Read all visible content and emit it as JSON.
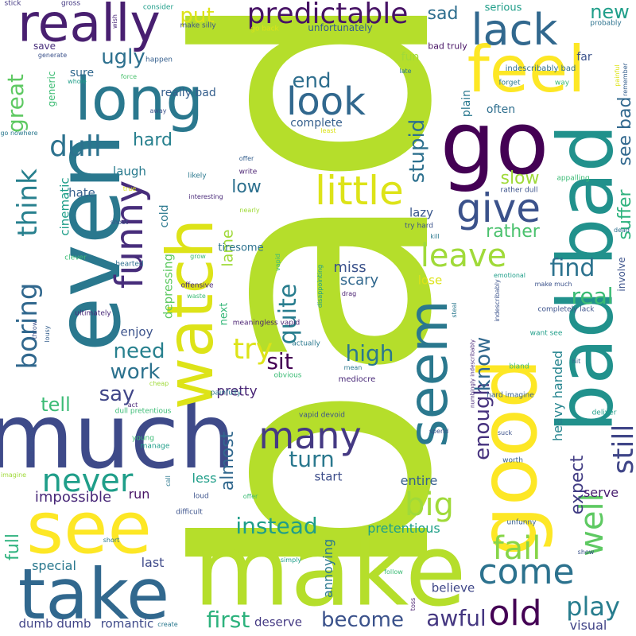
{
  "words": [
    {
      "text": "bad",
      "color": "#b5de2b",
      "vertical": true
    },
    {
      "text": "make",
      "color": "#b5de2b",
      "vertical": false
    },
    {
      "text": "even",
      "color": "#2a788e",
      "vertical": true
    },
    {
      "text": "much",
      "color": "#3e4a89",
      "vertical": false
    },
    {
      "text": "go",
      "color": "#440154",
      "vertical": false
    },
    {
      "text": "good",
      "color": "#fde725",
      "vertical": true
    },
    {
      "text": "bad bad",
      "color": "#21918c",
      "vertical": true
    },
    {
      "text": "see",
      "color": "#fde725",
      "vertical": false
    },
    {
      "text": "take",
      "color": "#31688e",
      "vertical": false
    },
    {
      "text": "watch",
      "color": "#dde318",
      "vertical": true
    },
    {
      "text": "long",
      "color": "#2a788e",
      "vertical": false
    },
    {
      "text": "feel",
      "color": "#fde725",
      "vertical": false
    },
    {
      "text": "really",
      "color": "#481f70",
      "vertical": false
    },
    {
      "text": "seem",
      "color": "#2a788e",
      "vertical": true
    },
    {
      "text": "little",
      "color": "#dde318",
      "vertical": false
    },
    {
      "text": "lack",
      "color": "#31688e",
      "vertical": false
    },
    {
      "text": "predictable",
      "color": "#471365",
      "vertical": false
    },
    {
      "text": "look",
      "color": "#31688e",
      "vertical": false
    },
    {
      "text": "many",
      "color": "#443983",
      "vertical": false
    },
    {
      "text": "funny",
      "color": "#472d7b",
      "vertical": true
    },
    {
      "text": "give",
      "color": "#3b528b",
      "vertical": false
    },
    {
      "text": "come",
      "color": "#2c728e",
      "vertical": false
    },
    {
      "text": "old",
      "color": "#440154",
      "vertical": false
    },
    {
      "text": "big",
      "color": "#a0da39",
      "vertical": false
    },
    {
      "text": "never",
      "color": "#1f9e89",
      "vertical": false
    },
    {
      "text": "leave",
      "color": "#a0da39",
      "vertical": false
    },
    {
      "text": "well",
      "color": "#5ec962",
      "vertical": true
    },
    {
      "text": "fail",
      "color": "#86d549",
      "vertical": false
    },
    {
      "text": "think",
      "color": "#27808e",
      "vertical": true
    },
    {
      "text": "boring",
      "color": "#31688e",
      "vertical": true
    },
    {
      "text": "dull",
      "color": "#2c728e",
      "vertical": false
    },
    {
      "text": "try",
      "color": "#dde318",
      "vertical": false
    },
    {
      "text": "turn",
      "color": "#2a788e",
      "vertical": false
    },
    {
      "text": "still",
      "color": "#404688",
      "vertical": true
    },
    {
      "text": "play",
      "color": "#287d8e",
      "vertical": false
    },
    {
      "text": "awful",
      "color": "#453781",
      "vertical": false
    },
    {
      "text": "become",
      "color": "#3b528b",
      "vertical": false
    },
    {
      "text": "first",
      "color": "#2db27d",
      "vertical": false
    },
    {
      "text": "instead",
      "color": "#1f9e89",
      "vertical": false
    },
    {
      "text": "find",
      "color": "#2c728e",
      "vertical": false
    },
    {
      "text": "real",
      "color": "#3bbb75",
      "vertical": false
    },
    {
      "text": "say",
      "color": "#404688",
      "vertical": false
    },
    {
      "text": "work",
      "color": "#2c728e",
      "vertical": false
    },
    {
      "text": "need",
      "color": "#27808e",
      "vertical": false
    },
    {
      "text": "high",
      "color": "#2a788e",
      "vertical": false
    },
    {
      "text": "sit",
      "color": "#440154",
      "vertical": false
    },
    {
      "text": "quite",
      "color": "#287d8e",
      "vertical": true
    },
    {
      "text": "enough",
      "color": "#46327e",
      "vertical": true
    },
    {
      "text": "know",
      "color": "#31688e",
      "vertical": true
    },
    {
      "text": "stupid",
      "color": "#2d708e",
      "vertical": true
    },
    {
      "text": "end",
      "color": "#2e6e8e",
      "vertical": false
    },
    {
      "text": "put",
      "color": "#dde318",
      "vertical": false
    },
    {
      "text": "ugly",
      "color": "#2d708e",
      "vertical": false
    },
    {
      "text": "new",
      "color": "#1f9e89",
      "vertical": false
    },
    {
      "text": "sad",
      "color": "#2e6e8e",
      "vertical": false
    },
    {
      "text": "great",
      "color": "#5ec962",
      "vertical": true
    },
    {
      "text": "hard",
      "color": "#27808e",
      "vertical": false
    },
    {
      "text": "slow",
      "color": "#a0da39",
      "vertical": false
    },
    {
      "text": "rather",
      "color": "#4ac16d",
      "vertical": false
    },
    {
      "text": "see bad",
      "color": "#31688e",
      "vertical": true
    },
    {
      "text": "suffer",
      "color": "#2db27d",
      "vertical": true
    },
    {
      "text": "expect",
      "color": "#433e85",
      "vertical": true
    },
    {
      "text": "low",
      "color": "#2d708e",
      "vertical": false
    },
    {
      "text": "tell",
      "color": "#3bbb75",
      "vertical": false
    },
    {
      "text": "full",
      "color": "#2db27d",
      "vertical": true
    },
    {
      "text": "impossible",
      "color": "#482878",
      "vertical": false
    },
    {
      "text": "almost",
      "color": "#31688e",
      "vertical": true
    },
    {
      "text": "pretty",
      "color": "#482475",
      "vertical": false
    },
    {
      "text": "lame",
      "color": "#a0da39",
      "vertical": true
    },
    {
      "text": "scary",
      "color": "#31688e",
      "vertical": false
    },
    {
      "text": "miss",
      "color": "#3b528b",
      "vertical": false
    },
    {
      "text": "lazy",
      "color": "#39568c",
      "vertical": false
    },
    {
      "text": "lose",
      "color": "#dde318",
      "vertical": false
    },
    {
      "text": "pretentious",
      "color": "#1fa088",
      "vertical": false
    },
    {
      "text": "annoying",
      "color": "#2a788e",
      "vertical": true
    },
    {
      "text": "heavy handed",
      "color": "#25848e",
      "vertical": true
    },
    {
      "text": "entire",
      "color": "#355f8d",
      "vertical": false
    },
    {
      "text": "start",
      "color": "#3d4d8a",
      "vertical": false
    },
    {
      "text": "serve",
      "color": "#481f70",
      "vertical": false
    },
    {
      "text": "run",
      "color": "#471365",
      "vertical": false
    },
    {
      "text": "less",
      "color": "#1f9e89",
      "vertical": false
    },
    {
      "text": "last",
      "color": "#3e4989",
      "vertical": false
    },
    {
      "text": "special",
      "color": "#2a788e",
      "vertical": false
    },
    {
      "text": "believe",
      "color": "#3f4788",
      "vertical": false
    },
    {
      "text": "deserve",
      "color": "#443983",
      "vertical": false
    },
    {
      "text": "romantic",
      "color": "#3e4989",
      "vertical": false
    },
    {
      "text": "dumb dumb",
      "color": "#414487",
      "vertical": false
    },
    {
      "text": "visual",
      "color": "#414487",
      "vertical": false
    },
    {
      "text": "cinematic",
      "color": "#1f9e89",
      "vertical": true
    },
    {
      "text": "hate",
      "color": "#355f8d",
      "vertical": false
    },
    {
      "text": "laugh",
      "color": "#297b8e",
      "vertical": false
    },
    {
      "text": "enjoy",
      "color": "#3b528b",
      "vertical": false
    },
    {
      "text": "depressing",
      "color": "#5ec962",
      "vertical": true
    },
    {
      "text": "cold",
      "color": "#2a788e",
      "vertical": true
    },
    {
      "text": "tiresome",
      "color": "#2c728e",
      "vertical": false
    },
    {
      "text": "next",
      "color": "#35b779",
      "vertical": true
    },
    {
      "text": "complete",
      "color": "#355f8d",
      "vertical": false
    },
    {
      "text": "often",
      "color": "#2e6e8e",
      "vertical": false
    },
    {
      "text": "plain",
      "color": "#2a788e",
      "vertical": true
    },
    {
      "text": "fun",
      "color": "#a0da39",
      "vertical": false
    },
    {
      "text": "far",
      "color": "#3b528b",
      "vertical": false
    },
    {
      "text": "serious",
      "color": "#1f9e89",
      "vertical": false
    },
    {
      "text": "unfortunately",
      "color": "#355f8d",
      "vertical": false
    },
    {
      "text": "sure",
      "color": "#31688e",
      "vertical": false
    },
    {
      "text": "generic",
      "color": "#3dbc74",
      "vertical": true
    },
    {
      "text": "save",
      "color": "#472d7b",
      "vertical": false
    },
    {
      "text": "really bad",
      "color": "#355f8d",
      "vertical": false
    },
    {
      "text": "involve",
      "color": "#3b528b",
      "vertical": true
    },
    {
      "text": "indescribably bad",
      "color": "#2e6e8e",
      "vertical": false
    },
    {
      "text": "bad truly",
      "color": "#471365",
      "vertical": false
    },
    {
      "text": "stick",
      "color": "#443983",
      "vertical": false
    },
    {
      "text": "gross",
      "color": "#443983",
      "vertical": false
    },
    {
      "text": "wish",
      "color": "#482878",
      "vertical": true
    },
    {
      "text": "consider",
      "color": "#1f9e89",
      "vertical": false
    },
    {
      "text": "make silly",
      "color": "#3b528b",
      "vertical": false
    },
    {
      "text": "go back",
      "color": "#dde318",
      "vertical": false
    },
    {
      "text": "probably",
      "color": "#2c728e",
      "vertical": false
    },
    {
      "text": "generate",
      "color": "#3b528b",
      "vertical": false
    },
    {
      "text": "happen",
      "color": "#355f8d",
      "vertical": false
    },
    {
      "text": "whole",
      "color": "#1f9e89",
      "vertical": false
    },
    {
      "text": "force",
      "color": "#4ac16d",
      "vertical": false
    },
    {
      "text": "late",
      "color": "#2a788e",
      "vertical": false
    },
    {
      "text": "forget",
      "color": "#2a788e",
      "vertical": false
    },
    {
      "text": "way",
      "color": "#3bbb75",
      "vertical": false
    },
    {
      "text": "painful",
      "color": "#dde318",
      "vertical": true
    },
    {
      "text": "remember",
      "color": "#355f8d",
      "vertical": true
    },
    {
      "text": "away",
      "color": "#3b528b",
      "vertical": false
    },
    {
      "text": "go nowhere",
      "color": "#2a788e",
      "vertical": false
    },
    {
      "text": "least",
      "color": "#dde318",
      "vertical": false
    },
    {
      "text": "appalling",
      "color": "#3bbb75",
      "vertical": false
    },
    {
      "text": "rather dull",
      "color": "#3b528b",
      "vertical": false
    },
    {
      "text": "likely",
      "color": "#2a788e",
      "vertical": false
    },
    {
      "text": "write",
      "color": "#481f70",
      "vertical": false
    },
    {
      "text": "offer",
      "color": "#355f8d",
      "vertical": false
    },
    {
      "text": "true",
      "color": "#dde318",
      "vertical": false
    },
    {
      "text": "interesting",
      "color": "#482878",
      "vertical": false
    },
    {
      "text": "shoot",
      "color": "#3b528b",
      "vertical": false
    },
    {
      "text": "grow",
      "color": "#3bbb75",
      "vertical": false
    },
    {
      "text": "nearly",
      "color": "#a0da39",
      "vertical": false
    },
    {
      "text": "kill",
      "color": "#2a788e",
      "vertical": false
    },
    {
      "text": "dead",
      "color": "#2e6e8e",
      "vertical": false
    },
    {
      "text": "try hard",
      "color": "#3b528b",
      "vertical": false
    },
    {
      "text": "clever",
      "color": "#3bbb75",
      "vertical": false
    },
    {
      "text": "hearted",
      "color": "#2e6e8e",
      "vertical": false
    },
    {
      "text": "offensive",
      "color": "#482878",
      "vertical": false
    },
    {
      "text": "waste",
      "color": "#3bbb75",
      "vertical": false
    },
    {
      "text": "vapid",
      "color": "#3bbb75",
      "vertical": true
    },
    {
      "text": "disappointing",
      "color": "#1f9e89",
      "vertical": true
    },
    {
      "text": "emotional",
      "color": "#1f9e89",
      "vertical": false
    },
    {
      "text": "make much",
      "color": "#3b528b",
      "vertical": false
    },
    {
      "text": "meaningless vapid",
      "color": "#481f70",
      "vertical": false
    },
    {
      "text": "steal",
      "color": "#2a788e",
      "vertical": true
    },
    {
      "text": "indescribably",
      "color": "#3b528b",
      "vertical": true
    },
    {
      "text": "completely lack",
      "color": "#3b528b",
      "vertical": false
    },
    {
      "text": "ultimately",
      "color": "#482878",
      "vertical": false
    },
    {
      "text": "lousy",
      "color": "#355f8d",
      "vertical": true
    },
    {
      "text": "throw",
      "color": "#3b528b",
      "vertical": true
    },
    {
      "text": "drag",
      "color": "#481f70",
      "vertical": false
    },
    {
      "text": "actually",
      "color": "#2a788e",
      "vertical": false
    },
    {
      "text": "want see",
      "color": "#1f9e89",
      "vertical": false
    },
    {
      "text": "mean",
      "color": "#2a788e",
      "vertical": false
    },
    {
      "text": "obvious",
      "color": "#3bbb75",
      "vertical": false
    },
    {
      "text": "hit",
      "color": "#355f8d",
      "vertical": false
    },
    {
      "text": "bland",
      "color": "#3bbb75",
      "vertical": false
    },
    {
      "text": "mediocre",
      "color": "#482878",
      "vertical": false
    },
    {
      "text": "numbingly indescribably",
      "color": "#482878",
      "vertical": true
    },
    {
      "text": "cheap",
      "color": "#a0da39",
      "vertical": false
    },
    {
      "text": "painfully",
      "color": "#2a788e",
      "vertical": false
    },
    {
      "text": "act",
      "color": "#482878",
      "vertical": false
    },
    {
      "text": "dull pretentious",
      "color": "#3bbb75",
      "vertical": false
    },
    {
      "text": "hard imagine",
      "color": "#355f8d",
      "vertical": false
    },
    {
      "text": "deliver",
      "color": "#1f9e89",
      "vertical": false
    },
    {
      "text": "vapid devoid",
      "color": "#3b528b",
      "vertical": false
    },
    {
      "text": "spend",
      "color": "#3b528b",
      "vertical": false
    },
    {
      "text": "suck",
      "color": "#3b528b",
      "vertical": false
    },
    {
      "text": "amateurish",
      "color": "#3b528b",
      "vertical": true
    },
    {
      "text": "young",
      "color": "#3bbb75",
      "vertical": false
    },
    {
      "text": "manage",
      "color": "#1f9e89",
      "vertical": false
    },
    {
      "text": "worth",
      "color": "#355f8d",
      "vertical": false
    },
    {
      "text": "imagine",
      "color": "#a0da39",
      "vertical": false
    },
    {
      "text": "call",
      "color": "#2a788e",
      "vertical": true
    },
    {
      "text": "loud",
      "color": "#3b528b",
      "vertical": false
    },
    {
      "text": "offer",
      "color": "#3bbb75",
      "vertical": false
    },
    {
      "text": "unfunny",
      "color": "#355f8d",
      "vertical": false
    },
    {
      "text": "difficult",
      "color": "#3b528b",
      "vertical": false
    },
    {
      "text": "short",
      "color": "#2a788e",
      "vertical": false
    },
    {
      "text": "show",
      "color": "#3b528b",
      "vertical": false
    },
    {
      "text": "simply",
      "color": "#1f9e89",
      "vertical": false
    },
    {
      "text": "follow",
      "color": "#3bbb75",
      "vertical": false
    },
    {
      "text": "toss",
      "color": "#481f70",
      "vertical": true
    },
    {
      "text": "create",
      "color": "#2a788e",
      "vertical": false
    }
  ]
}
